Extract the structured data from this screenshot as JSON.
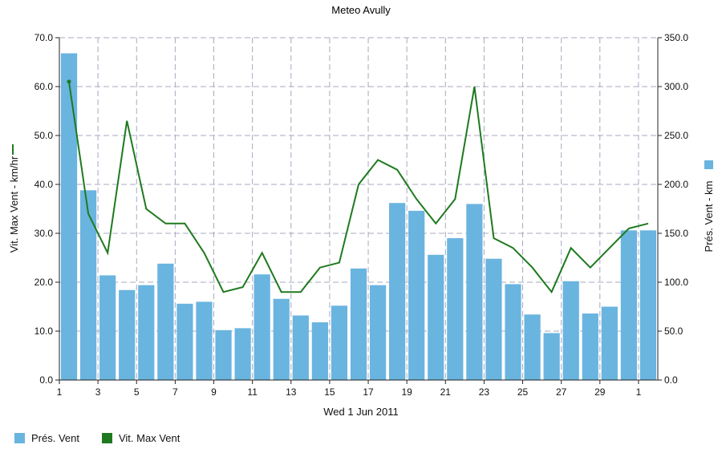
{
  "chart_data": {
    "type": "bar",
    "title": "Meteo  Avully",
    "xlabel": "Wed 1 Jun 2011",
    "ylabel_left": "Vit. Max Vent - km/hr",
    "ylabel_right": "Prés. Vent - km",
    "categories": [
      "1",
      "2",
      "3",
      "4",
      "5",
      "6",
      "7",
      "8",
      "9",
      "10",
      "11",
      "12",
      "13",
      "14",
      "15",
      "16",
      "17",
      "18",
      "19",
      "20",
      "21",
      "22",
      "23",
      "24",
      "25",
      "26",
      "27",
      "28",
      "29",
      "30",
      "1"
    ],
    "x_tick_labels": [
      "1",
      "3",
      "5",
      "7",
      "9",
      "11",
      "13",
      "15",
      "17",
      "19",
      "21",
      "23",
      "25",
      "27",
      "29",
      "1"
    ],
    "left_axis": {
      "ylim": [
        0,
        70
      ],
      "ticks": [
        "0.0",
        "10.0",
        "20.0",
        "30.0",
        "40.0",
        "50.0",
        "60.0",
        "70.0"
      ]
    },
    "right_axis": {
      "ylim": [
        0,
        350
      ],
      "ticks": [
        "0.0",
        "50.0",
        "100.0",
        "150.0",
        "200.0",
        "250.0",
        "300.0",
        "350.0"
      ]
    },
    "grid": true,
    "series": [
      {
        "name": "Prés. Vent",
        "kind": "bar",
        "axis": "right",
        "color": "#6ab4e0",
        "values": [
          334,
          194,
          107,
          92,
          97,
          119,
          78,
          80,
          51,
          53,
          108,
          83,
          66,
          59,
          76,
          114,
          97,
          181,
          173,
          128,
          145,
          180,
          124,
          98,
          67,
          48,
          101,
          68,
          75,
          153,
          153
        ]
      },
      {
        "name": "Vit. Max Vent",
        "kind": "line",
        "axis": "left",
        "color": "#1f7a1f",
        "values": [
          61,
          34,
          26,
          53,
          35,
          32,
          32,
          26,
          18,
          19,
          26,
          18,
          18,
          23,
          24,
          40,
          45,
          43,
          37,
          32,
          37,
          60,
          29,
          27,
          23,
          18,
          27,
          23,
          27,
          31,
          32
        ]
      }
    ]
  }
}
